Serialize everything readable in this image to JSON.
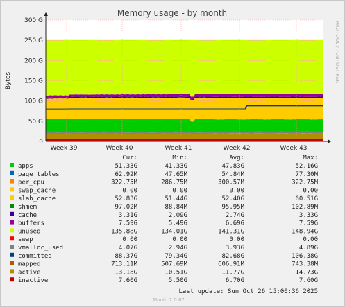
{
  "chart_data": {
    "type": "area",
    "title": "Memory usage - by month",
    "ylabel": "Bytes",
    "ylim": [
      0,
      300
    ],
    "yticks": [
      "0",
      "50 G",
      "100 G",
      "150 G",
      "200 G",
      "250 G",
      "300 G"
    ],
    "x": [
      "Week 39",
      "Week 40",
      "Week 41",
      "Week 42",
      "Week 43"
    ],
    "side_label": "RRDTOOL / TOBI OETIKER",
    "legend_headers": [
      "Cur:",
      "Min:",
      "Avg:",
      "Max:"
    ],
    "series": [
      {
        "name": "apps",
        "color": "#00cc00",
        "cur": "51.33G",
        "min": "41.33G",
        "avg": "47.83G",
        "max": "52.16G"
      },
      {
        "name": "page_tables",
        "color": "#0066b3",
        "cur": "62.92M",
        "min": "47.65M",
        "avg": "54.84M",
        "max": "77.30M"
      },
      {
        "name": "per_cpu",
        "color": "#ff8000",
        "cur": "322.75M",
        "min": "286.75M",
        "avg": "300.57M",
        "max": "322.75M"
      },
      {
        "name": "swap_cache",
        "color": "#ffcc00",
        "cur": "0.00",
        "min": "0.00",
        "avg": "0.00",
        "max": "0.00"
      },
      {
        "name": "slab_cache",
        "color": "#ffcc00",
        "cur": "52.83G",
        "min": "51.44G",
        "avg": "52.40G",
        "max": "60.51G"
      },
      {
        "name": "shmem",
        "color": "#008f00",
        "cur": "97.02M",
        "min": "88.84M",
        "avg": "95.95M",
        "max": "102.89M"
      },
      {
        "name": "cache",
        "color": "#330099",
        "cur": "3.31G",
        "min": "2.09G",
        "avg": "2.74G",
        "max": "3.33G"
      },
      {
        "name": "buffers",
        "color": "#990099",
        "cur": "7.59G",
        "min": "5.49G",
        "avg": "6.69G",
        "max": "7.59G"
      },
      {
        "name": "unused",
        "color": "#ccff00",
        "cur": "135.88G",
        "min": "134.01G",
        "avg": "141.31G",
        "max": "148.94G"
      },
      {
        "name": "swap",
        "color": "#ff0000",
        "cur": "0.00",
        "min": "0.00",
        "avg": "0.00",
        "max": "0.00"
      },
      {
        "name": "vmalloc_used",
        "color": "#808080",
        "cur": "4.07G",
        "min": "2.94G",
        "avg": "3.93G",
        "max": "4.89G"
      },
      {
        "name": "committed",
        "color": "#004080",
        "cur": "88.37G",
        "min": "79.34G",
        "avg": "82.68G",
        "max": "106.38G"
      },
      {
        "name": "mapped",
        "color": "#b35a00",
        "cur": "713.11M",
        "min": "507.69M",
        "avg": "606.91M",
        "max": "743.38M"
      },
      {
        "name": "active",
        "color": "#b38f00",
        "cur": "13.18G",
        "min": "10.51G",
        "avg": "11.77G",
        "max": "14.73G"
      },
      {
        "name": "inactive",
        "color": "#c00000",
        "cur": "7.60G",
        "min": "5.50G",
        "avg": "6.70G",
        "max": "7.60G"
      }
    ],
    "grid": true,
    "last_update": "Last update: Sun Oct 26 15:00:36 2025",
    "footer": "Munin 2.0.67"
  }
}
